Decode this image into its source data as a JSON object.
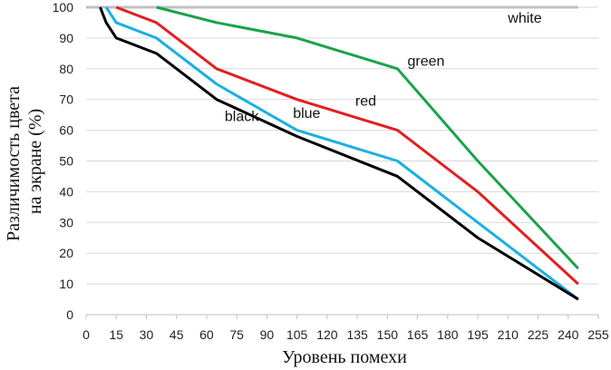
{
  "chart_data": {
    "type": "line",
    "xlabel": "Уровень помехи",
    "ylabel_lines": [
      "Различимость цвета",
      "на экране (%)"
    ],
    "xlim": [
      0,
      255
    ],
    "ylim": [
      0,
      100
    ],
    "xticks": [
      0,
      15,
      30,
      45,
      60,
      75,
      90,
      105,
      120,
      135,
      150,
      165,
      180,
      195,
      210,
      225,
      240,
      255
    ],
    "yticks": [
      0,
      10,
      20,
      30,
      40,
      50,
      60,
      70,
      80,
      90,
      100
    ],
    "grid": "horizontal",
    "series": [
      {
        "name": "white",
        "color": "#bfbfbf",
        "x": [
          0,
          245
        ],
        "y": [
          100,
          100
        ]
      },
      {
        "name": "green",
        "color": "#1aa34a",
        "x": [
          35,
          65,
          105,
          155,
          195,
          245
        ],
        "y": [
          100,
          95,
          90,
          80,
          50,
          15
        ]
      },
      {
        "name": "red",
        "color": "#e02020",
        "x": [
          15,
          35,
          65,
          105,
          155,
          195,
          245
        ],
        "y": [
          100,
          95,
          80,
          70,
          60,
          40,
          10
        ]
      },
      {
        "name": "blue",
        "color": "#1ab0e0",
        "x": [
          10,
          15,
          35,
          65,
          105,
          155,
          195,
          245
        ],
        "y": [
          100,
          95,
          90,
          75,
          60,
          50,
          30,
          5
        ]
      },
      {
        "name": "black",
        "color": "#000000",
        "x": [
          7,
          10,
          15,
          35,
          65,
          105,
          155,
          195,
          245
        ],
        "y": [
          100,
          95,
          90,
          85,
          70,
          58,
          45,
          25,
          5
        ]
      }
    ],
    "labels": [
      {
        "series": "white",
        "text": "white",
        "x": 210,
        "y": 95
      },
      {
        "series": "green",
        "text": "green",
        "x": 160,
        "y": 81
      },
      {
        "series": "red",
        "text": "red",
        "x": 134,
        "y": 68
      },
      {
        "series": "blue",
        "text": "blue",
        "x": 103,
        "y": 64
      },
      {
        "series": "black",
        "text": "black",
        "x": 69,
        "y": 63
      }
    ]
  }
}
